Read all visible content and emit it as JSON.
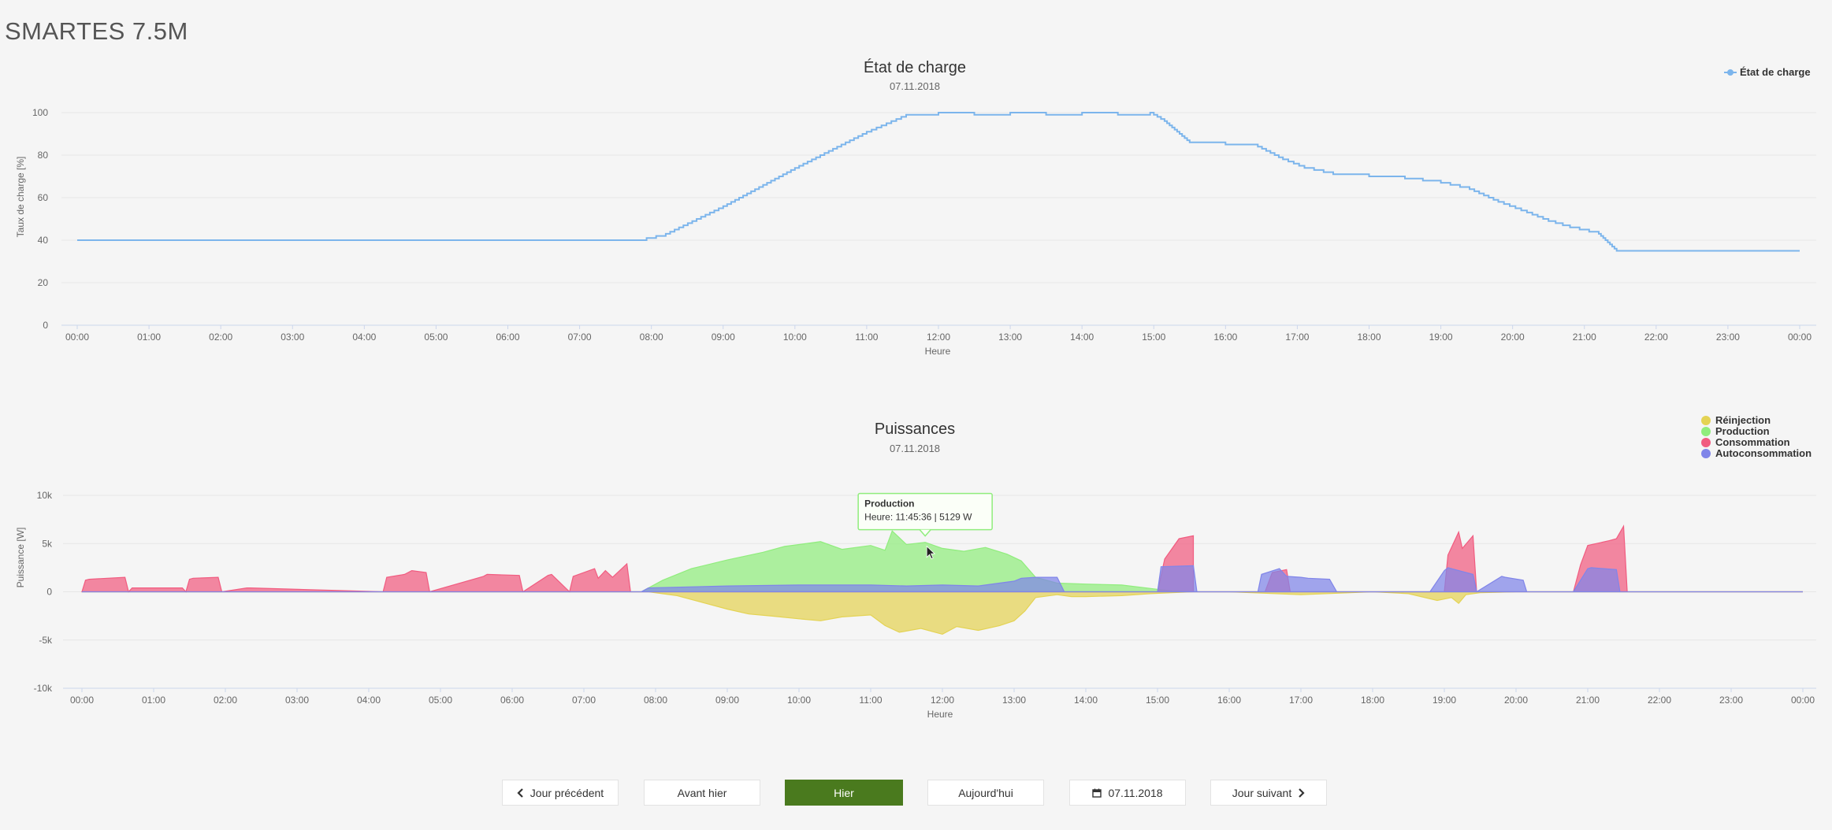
{
  "app": {
    "title": "SMARTES 7.5M"
  },
  "charts": [
    {
      "type": "line",
      "title": "État de charge",
      "subtitle": "07.11.2018",
      "xlabel": "Heure",
      "ylabel": "Taux de charge [%]",
      "ylim": [
        0,
        100
      ],
      "yticks": [
        0,
        20,
        40,
        60,
        80,
        100
      ],
      "ytick_labels": [
        "0",
        "20",
        "40",
        "60",
        "80",
        "100"
      ],
      "xticks": [
        "00:00",
        "01:00",
        "02:00",
        "03:00",
        "04:00",
        "05:00",
        "06:00",
        "07:00",
        "08:00",
        "09:00",
        "10:00",
        "11:00",
        "12:00",
        "13:00",
        "14:00",
        "15:00",
        "16:00",
        "17:00",
        "18:00",
        "19:00",
        "20:00",
        "21:00",
        "22:00",
        "23:00",
        "00:00"
      ],
      "legend_position": "top-right",
      "grid": true,
      "series": [
        {
          "name": "État de charge",
          "color": "#7cb5ec",
          "x": [
            0,
            7.8,
            8.2,
            9,
            10,
            11,
            11.55,
            12,
            12.5,
            13,
            13.5,
            14,
            14.5,
            14.95,
            15.15,
            15.5,
            16,
            16.45,
            16.8,
            17.1,
            17.5,
            18,
            18.5,
            19,
            19.4,
            19.8,
            20.2,
            20.5,
            20.8,
            21.2,
            21.45,
            22,
            23,
            24
          ],
          "y": [
            40,
            40,
            43,
            56,
            74,
            91,
            99,
            100,
            99,
            100,
            99,
            100,
            99,
            100,
            96,
            86,
            85,
            84,
            78,
            74,
            71,
            70,
            69,
            67,
            64,
            58,
            53,
            49,
            46,
            43,
            35,
            35,
            35,
            35
          ]
        }
      ]
    },
    {
      "type": "area",
      "title": "Puissances",
      "subtitle": "07.11.2018",
      "xlabel": "Heure",
      "ylabel": "Puissance [W]",
      "ylim": [
        -10000,
        10000
      ],
      "yticks": [
        -10000,
        -5000,
        0,
        5000,
        10000
      ],
      "ytick_labels": [
        "-10k",
        "-5k",
        "0",
        "5k",
        "10k"
      ],
      "xticks": [
        "00:00",
        "01:00",
        "02:00",
        "03:00",
        "04:00",
        "05:00",
        "06:00",
        "07:00",
        "08:00",
        "09:00",
        "10:00",
        "11:00",
        "12:00",
        "13:00",
        "14:00",
        "15:00",
        "16:00",
        "17:00",
        "18:00",
        "19:00",
        "20:00",
        "21:00",
        "22:00",
        "23:00",
        "00:00"
      ],
      "legend_position": "top-right",
      "grid": true,
      "tooltip": {
        "series": "Production",
        "text": "Heure: 11:45:36 | 5129 W",
        "x": 11.76,
        "y": 5129
      },
      "series": [
        {
          "name": "Réinjection",
          "color": "#e4d354",
          "x": [
            0,
            7.9,
            8.3,
            8.7,
            9,
            9.3,
            9.6,
            10,
            10.3,
            10.6,
            11,
            11.2,
            11.4,
            11.7,
            12,
            12.2,
            12.5,
            12.8,
            13,
            13.15,
            13.3,
            13.6,
            13.8,
            14,
            14.5,
            14.9,
            15.2,
            15.5,
            16,
            17,
            18,
            18.5,
            18.9,
            19.1,
            19.2,
            19.3,
            19.5,
            20,
            21,
            22,
            24
          ],
          "y": [
            0,
            0,
            -400,
            -1200,
            -1800,
            -2300,
            -2500,
            -2800,
            -3000,
            -2600,
            -2400,
            -3500,
            -4200,
            -3800,
            -4400,
            -3600,
            -4000,
            -3500,
            -3000,
            -2000,
            -600,
            -300,
            -500,
            -500,
            -400,
            -200,
            -100,
            0,
            0,
            -300,
            0,
            -200,
            -900,
            -600,
            -1200,
            -300,
            -100,
            0,
            0,
            0,
            0
          ]
        },
        {
          "name": "Production",
          "color": "#90ed7d",
          "x": [
            0,
            7.8,
            8.1,
            8.5,
            9,
            9.5,
            9.8,
            10,
            10.3,
            10.6,
            11,
            11.2,
            11.3,
            11.5,
            11.76,
            12,
            12.3,
            12.6,
            12.9,
            13.1,
            13.3,
            13.6,
            14,
            14.5,
            14.95,
            15.2,
            15.6,
            16,
            17,
            18,
            19,
            20,
            24
          ],
          "y": [
            0,
            0,
            1200,
            2400,
            3300,
            4100,
            4700,
            4900,
            5200,
            4400,
            4800,
            4300,
            6300,
            4900,
            5129,
            4500,
            4200,
            4600,
            3900,
            3200,
            1500,
            900,
            800,
            700,
            300,
            100,
            0,
            0,
            0,
            0,
            0,
            0,
            0
          ]
        },
        {
          "name": "Consommation",
          "color": "#f15c80",
          "x": [
            0,
            0.05,
            0.1,
            0.6,
            0.65,
            0.7,
            1.4,
            1.45,
            1.5,
            1.55,
            1.9,
            1.95,
            2.3,
            2.35,
            4.2,
            4.25,
            4.5,
            4.6,
            4.8,
            4.85,
            5.6,
            5.65,
            6.1,
            6.15,
            6.5,
            6.55,
            6.8,
            6.85,
            7.15,
            7.2,
            7.3,
            7.4,
            7.6,
            7.65,
            7.8,
            7.85,
            15.0,
            15.1,
            15.3,
            15.5,
            15.5,
            16.5,
            16.6,
            16.8,
            16.85,
            19.0,
            19.05,
            19.2,
            19.25,
            19.4,
            19.45,
            20.8,
            20.9,
            21.0,
            21.3,
            21.4,
            21.5,
            21.55,
            23.5,
            23.55,
            24
          ],
          "y": [
            0,
            1200,
            1300,
            1500,
            0,
            400,
            400,
            0,
            1300,
            1400,
            1500,
            0,
            400,
            400,
            0,
            1500,
            1800,
            2200,
            2000,
            0,
            1600,
            1800,
            1700,
            0,
            1700,
            1800,
            0,
            1600,
            2400,
            1400,
            2200,
            1500,
            2900,
            0,
            0,
            0,
            0,
            3400,
            5500,
            5800,
            0,
            0,
            2000,
            2300,
            0,
            0,
            3800,
            6200,
            4500,
            5800,
            0,
            0,
            2800,
            4800,
            5300,
            5500,
            6800,
            0,
            0,
            0,
            0
          ]
        },
        {
          "name": "Autoconsommation",
          "color": "#8085e9",
          "x": [
            0,
            7.8,
            7.9,
            9,
            10,
            11,
            11.5,
            12,
            12.5,
            13,
            13.1,
            13.3,
            13.6,
            13.7,
            15.0,
            15.05,
            15.5,
            15.55,
            16.4,
            16.45,
            16.7,
            16.8,
            17.0,
            17.1,
            17.4,
            17.5,
            18.8,
            19.0,
            19.05,
            19.4,
            19.45,
            19.8,
            19.85,
            20.1,
            20.15,
            20.8,
            21.0,
            21.05,
            21.4,
            21.45,
            22,
            24
          ],
          "y": [
            0,
            0,
            400,
            600,
            700,
            700,
            600,
            700,
            600,
            1100,
            1400,
            1500,
            1500,
            0,
            0,
            2600,
            2700,
            0,
            0,
            1800,
            2400,
            1600,
            1500,
            1400,
            1300,
            0,
            0,
            2200,
            2500,
            1800,
            0,
            1600,
            1500,
            1200,
            0,
            0,
            2400,
            2500,
            2300,
            0,
            0,
            0
          ]
        }
      ]
    }
  ],
  "navigation": {
    "buttons": [
      {
        "label": "Jour précédent",
        "icon": "chevron-left-icon",
        "active": false
      },
      {
        "label": "Avant hier",
        "icon": "",
        "active": false
      },
      {
        "label": "Hier",
        "icon": "",
        "active": true
      },
      {
        "label": "Aujourd'hui",
        "icon": "",
        "active": false
      },
      {
        "label": "07.11.2018",
        "icon": "calendar-icon",
        "active": false
      },
      {
        "label": "Jour suivant",
        "icon": "chevron-right-icon",
        "active": false
      }
    ],
    "active_color": "#4a7a1e"
  }
}
